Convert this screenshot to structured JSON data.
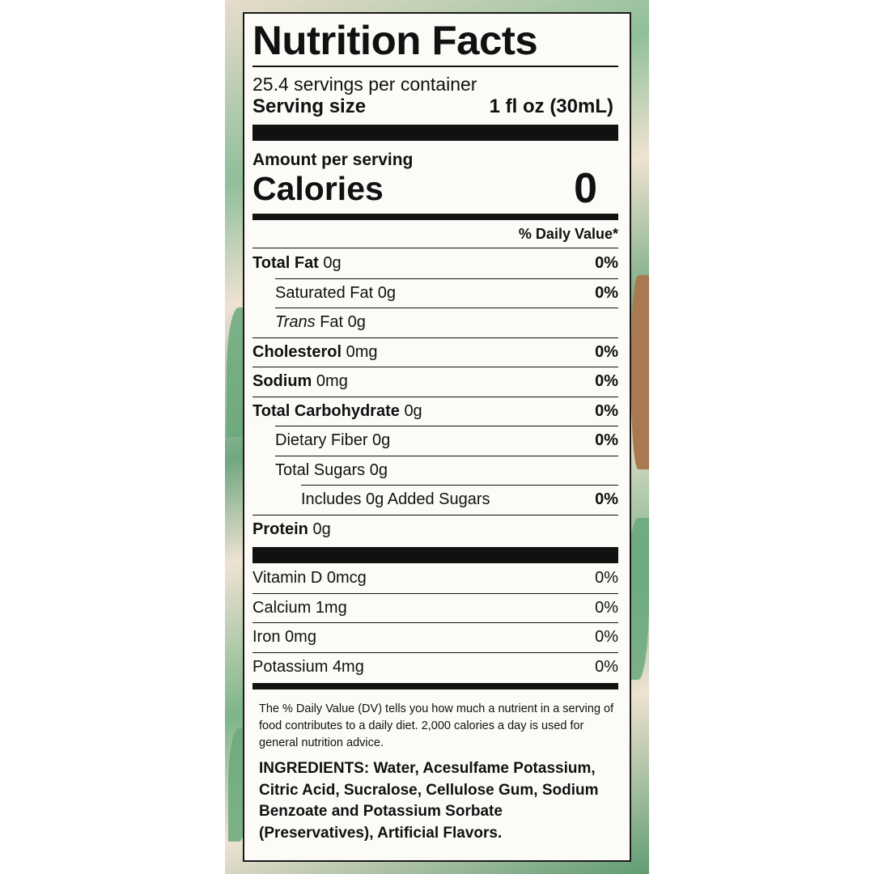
{
  "title": "Nutrition Facts",
  "servings_per_container": "25.4 servings per container",
  "serving_size": {
    "label": "Serving size",
    "value": "1 fl oz (30mL)"
  },
  "amount_per_serving": "Amount per serving",
  "calories": {
    "label": "Calories",
    "value": "0"
  },
  "daily_value_header": "% Daily Value*",
  "nutrients": [
    {
      "name": "Total Fat",
      "amount": "0g",
      "dv": "0%",
      "bold": true,
      "indent": 0
    },
    {
      "name": "Saturated Fat",
      "amount": "0g",
      "dv": "0%",
      "bold": false,
      "indent": 1
    },
    {
      "name": "Trans",
      "name_suffix": "Fat",
      "amount": "0g",
      "dv": "",
      "bold": false,
      "indent": 1
    },
    {
      "name": "Cholesterol",
      "amount": "0mg",
      "dv": "0%",
      "bold": true,
      "indent": 0
    },
    {
      "name": "Sodium",
      "amount": "0mg",
      "dv": "0%",
      "bold": true,
      "indent": 0
    },
    {
      "name": "Total Carbohydrate",
      "amount": "0g",
      "dv": "0%",
      "bold": true,
      "indent": 0
    },
    {
      "name": "Dietary Fiber",
      "amount": "0g",
      "dv": "0%",
      "bold": false,
      "indent": 1
    },
    {
      "name": "Total Sugars",
      "amount": "0g",
      "dv": "",
      "bold": false,
      "indent": 1
    },
    {
      "name": "Includes 0g Added Sugars",
      "amount": "",
      "dv": "0%",
      "bold": false,
      "indent": 2
    },
    {
      "name": "Protein",
      "amount": "0g",
      "dv": "",
      "bold": true,
      "indent": 0
    }
  ],
  "minerals": [
    {
      "name": "Vitamin D",
      "amount": "0mcg",
      "dv": "0%"
    },
    {
      "name": "Calcium",
      "amount": "1mg",
      "dv": "0%"
    },
    {
      "name": "Iron",
      "amount": "0mg",
      "dv": "0%"
    },
    {
      "name": "Potassium",
      "amount": "4mg",
      "dv": "0%"
    }
  ],
  "footnote": "The % Daily Value (DV) tells you how much a nutrient in a serving of food contributes to a daily diet. 2,000 calories a day is used for general nutrition advice.",
  "ingredients": "INGREDIENTS: Water, Acesulfame Potassium, Citric Acid, Sucralose, Cellulose Gum, Sodium Benzoate and Potassium Sorbate (Preservatives), Artificial Flavors.",
  "colors": {
    "background_leaf": "#6aa87c",
    "label": "#fdfbf8",
    "ink": "#111111"
  }
}
